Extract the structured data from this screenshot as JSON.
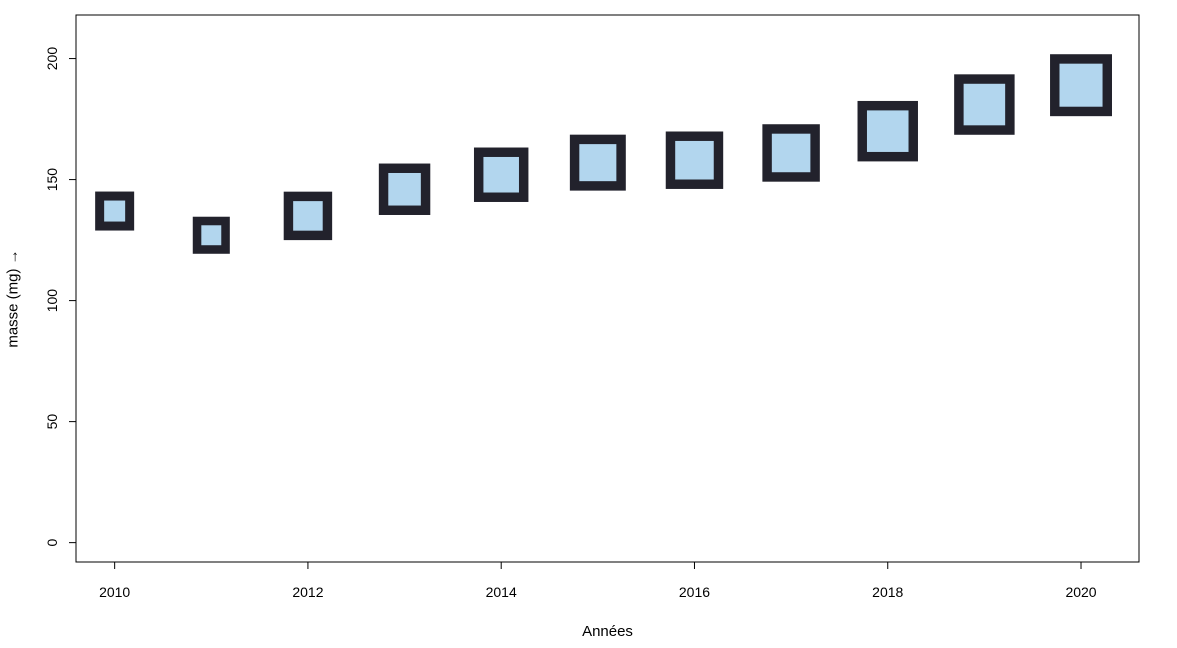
{
  "chart_data": {
    "type": "scatter",
    "marker": "square",
    "title": "",
    "xlabel": "Années",
    "ylabel": "masse (mg) →",
    "x": [
      2010,
      2011,
      2012,
      2013,
      2014,
      2015,
      2016,
      2017,
      2018,
      2019,
      2020
    ],
    "y": [
      137,
      127,
      135,
      146,
      152,
      157,
      158,
      161,
      170,
      181,
      189
    ],
    "size": [
      1.0,
      0.95,
      1.3,
      1.4,
      1.5,
      1.55,
      1.6,
      1.6,
      1.7,
      1.7,
      1.75
    ],
    "xlim": [
      2009.6,
      2020.6
    ],
    "ylim": [
      -8,
      218
    ],
    "xticks": [
      2010,
      2012,
      2014,
      2016,
      2018,
      2020
    ],
    "yticks": [
      0,
      50,
      100,
      150,
      200
    ],
    "grid": false,
    "legend": "none",
    "colors": {
      "fill": "#b2d6ee",
      "edge": "#22222c",
      "frame": "#000000"
    }
  }
}
